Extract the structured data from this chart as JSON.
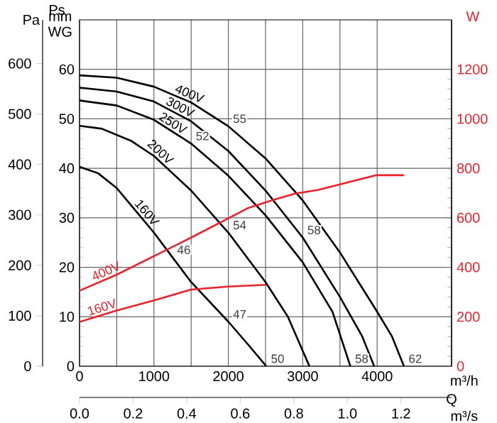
{
  "chart_data": {
    "type": "line",
    "xlabel": "m³/h",
    "x2label": "m³/s",
    "ylabel": "mm WG",
    "y2label": "W",
    "y3label": "Pa",
    "xlim": [
      0,
      5000
    ],
    "xticks": [
      0,
      1000,
      2000,
      3000,
      4000
    ],
    "x2lim": [
      0,
      1.3889
    ],
    "x2ticks": [
      {
        "value": 0,
        "label": "0.0"
      },
      {
        "value": 0.2,
        "label": "0.2"
      },
      {
        "value": 0.4,
        "label": "0.4"
      },
      {
        "value": 0.6,
        "label": "0.6"
      },
      {
        "value": 0.8,
        "label": "0.8"
      },
      {
        "value": 1.0,
        "label": "1.0"
      },
      {
        "value": 1.2,
        "label": "1.2"
      }
    ],
    "ylim": [
      0,
      70
    ],
    "yticks": [
      0,
      10,
      20,
      30,
      40,
      50,
      60
    ],
    "y2lim": [
      0,
      1400
    ],
    "y2ticks": [
      0,
      200,
      400,
      600,
      800,
      1000,
      1200
    ],
    "y3lim": [
      0,
      686.5
    ],
    "y3ticks": [
      0,
      100,
      200,
      300,
      400,
      500,
      600
    ],
    "grid": true,
    "series": [
      {
        "name": "400V",
        "color": "#000000",
        "x": [
          0,
          500,
          1000,
          1500,
          2000,
          2500,
          3000,
          3500,
          4000,
          4200,
          4360
        ],
        "values": [
          58.8,
          58.3,
          56.5,
          53.3,
          48.5,
          42,
          33.5,
          23,
          11,
          6,
          0
        ]
      },
      {
        "name": "300V",
        "color": "#000000",
        "x": [
          0,
          500,
          1000,
          1500,
          2000,
          2500,
          3000,
          3500,
          3800,
          3960
        ],
        "values": [
          56.3,
          55.5,
          53.5,
          49.5,
          43.5,
          35.5,
          26,
          14,
          6,
          0
        ]
      },
      {
        "name": "250V",
        "color": "#000000",
        "x": [
          0,
          500,
          1000,
          1500,
          2000,
          2500,
          3000,
          3400,
          3640
        ],
        "values": [
          53.7,
          52.7,
          49.8,
          45,
          38.5,
          30.5,
          21,
          11,
          0
        ]
      },
      {
        "name": "200V",
        "color": "#000000",
        "x": [
          0,
          300,
          700,
          1000,
          1500,
          2000,
          2500,
          2800,
          3090
        ],
        "values": [
          48.6,
          48,
          45.5,
          42.5,
          35.5,
          27,
          17,
          10,
          0
        ]
      },
      {
        "name": "160V",
        "color": "#000000",
        "x": [
          0,
          250,
          500,
          750,
          1000,
          1250,
          1500,
          2000,
          2270,
          2510
        ],
        "values": [
          40.3,
          39,
          36,
          31.5,
          27,
          22,
          17,
          9,
          4.3,
          0
        ]
      },
      {
        "name": "400V",
        "color": "#e8212a",
        "axis": "y2",
        "x": [
          0,
          500,
          1000,
          1500,
          2000,
          2270,
          2600,
          2900,
          3200,
          3540,
          3980,
          4360
        ],
        "values": [
          305,
          370,
          445,
          520,
          598,
          640,
          672,
          698,
          712,
          738,
          772,
          772
        ]
      },
      {
        "name": "160V",
        "color": "#e8212a",
        "axis": "y2",
        "x": [
          0,
          500,
          1000,
          1500,
          2000,
          2510
        ],
        "values": [
          179,
          225,
          266,
          310,
          322,
          329
        ]
      }
    ],
    "annotations": [
      "Ps",
      "Q",
      {
        "text": "55",
        "x": 2000,
        "y": 48.5
      },
      {
        "text": "52",
        "x": 1500,
        "y": 45
      },
      {
        "text": "46",
        "x": 1250,
        "y": 22
      },
      {
        "text": "47",
        "x": 2000,
        "y": 9
      },
      {
        "text": "50",
        "x": 2510,
        "y": 0
      },
      {
        "text": "54",
        "x": 2000,
        "y": 27
      },
      {
        "text": "58",
        "x": 3000,
        "y": 26
      },
      {
        "text": "58",
        "x": 3640,
        "y": 0
      },
      {
        "text": "62",
        "x": 4360,
        "y": 0
      }
    ]
  }
}
